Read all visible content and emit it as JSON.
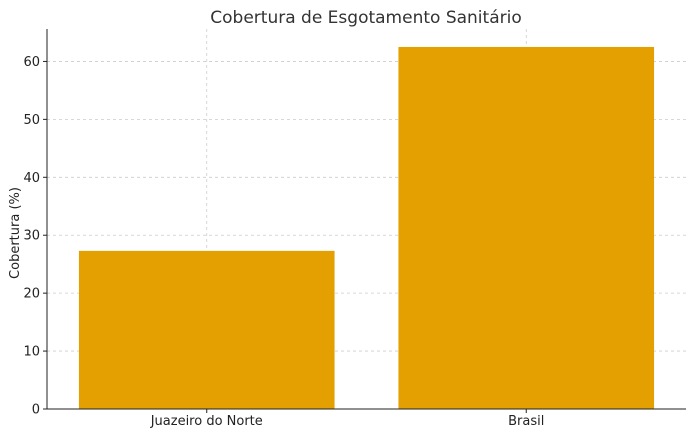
{
  "chart_data": {
    "type": "bar",
    "title": "Cobertura de Esgotamento Sanitário",
    "xlabel": "",
    "ylabel": "Cobertura (%)",
    "categories": [
      "Juazeiro do Norte",
      "Brasil"
    ],
    "values": [
      27.3,
      62.5
    ],
    "ylim": [
      0,
      65.6
    ],
    "yticks": [
      0,
      10,
      20,
      30,
      40,
      50,
      60
    ],
    "grid": true,
    "bar_color": "#E3A000",
    "legend": "none"
  }
}
